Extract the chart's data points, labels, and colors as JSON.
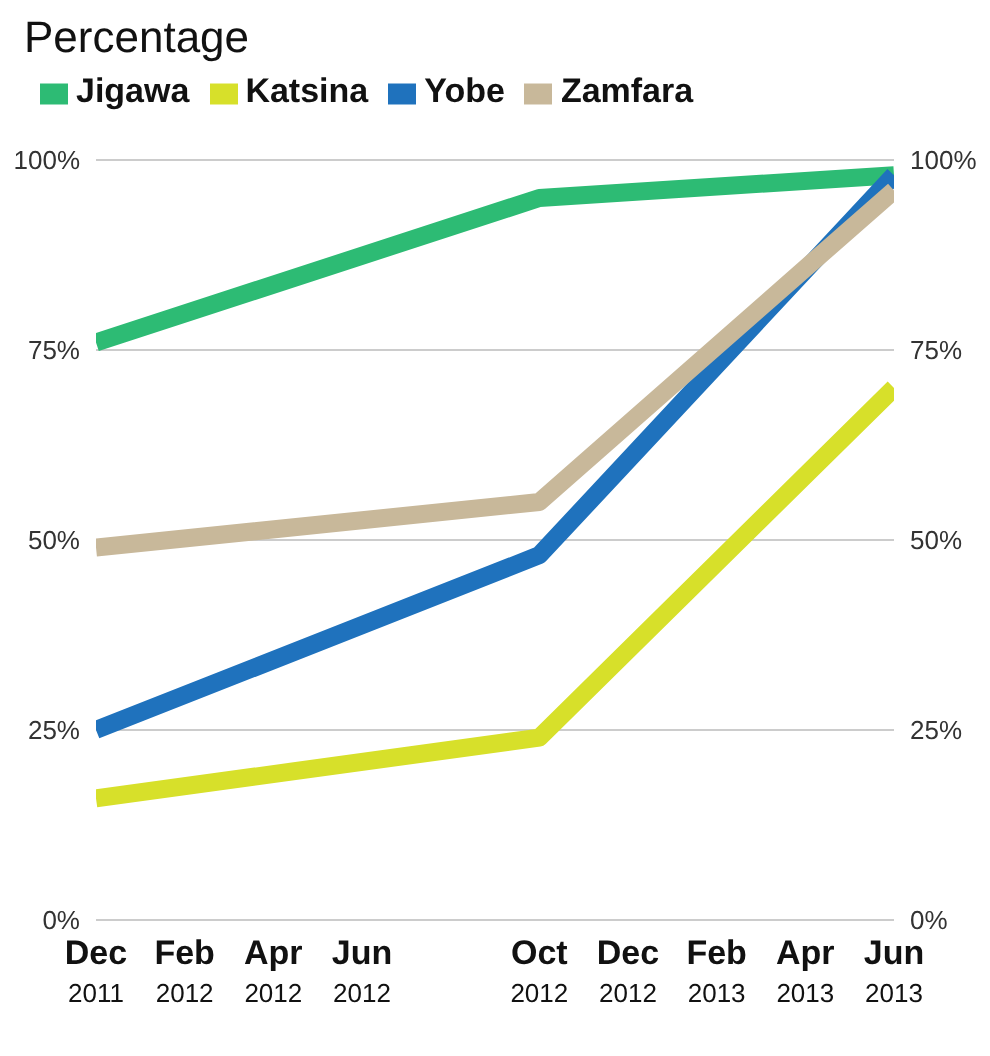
{
  "chart_data": {
    "type": "line",
    "title": "Percentage",
    "x": [
      "2011-12",
      "2012-10",
      "2013-06"
    ],
    "xlim": [
      "2011-12",
      "2013-06"
    ],
    "xticks": [
      {
        "value": "2011-12",
        "label": "Dec 2011"
      },
      {
        "value": "2012-02",
        "label": "Feb 2012"
      },
      {
        "value": "2012-04",
        "label": "Apr 2012"
      },
      {
        "value": "2012-06",
        "label": "Jun 2012"
      },
      {
        "value": "2012-10",
        "label": "Oct 2012"
      },
      {
        "value": "2012-12",
        "label": "Dec 2012"
      },
      {
        "value": "2013-02",
        "label": "Feb 2013"
      },
      {
        "value": "2013-04",
        "label": "Apr 2013"
      },
      {
        "value": "2013-06",
        "label": "Jun 2013"
      }
    ],
    "ylim": [
      0,
      100
    ],
    "yticks": [
      {
        "value": 0,
        "label": "0%"
      },
      {
        "value": 25,
        "label": "25%"
      },
      {
        "value": 50,
        "label": "50%"
      },
      {
        "value": 75,
        "label": "75%"
      },
      {
        "value": 100,
        "label": "100%"
      }
    ],
    "y2lim": [
      0,
      100
    ],
    "y2ticks": [
      {
        "value": 0,
        "label": "0%"
      },
      {
        "value": 25,
        "label": "25%"
      },
      {
        "value": 50,
        "label": "50%"
      },
      {
        "value": 75,
        "label": "75%"
      },
      {
        "value": 100,
        "label": "100%"
      }
    ],
    "grid": "y",
    "legend": "top left",
    "marker": "none",
    "line_style": "solid",
    "series": [
      {
        "name": "Jigawa",
        "color": "#2dbb74",
        "values": [
          76,
          95,
          98
        ]
      },
      {
        "name": "Katsina",
        "color": "#d7e02a",
        "values": [
          16,
          24,
          70
        ]
      },
      {
        "name": "Yobe",
        "color": "#1f72bd",
        "values": [
          25,
          48,
          98
        ]
      },
      {
        "name": "Zamfara",
        "color": "#c8b89a",
        "values": [
          49,
          55,
          96
        ]
      }
    ]
  }
}
